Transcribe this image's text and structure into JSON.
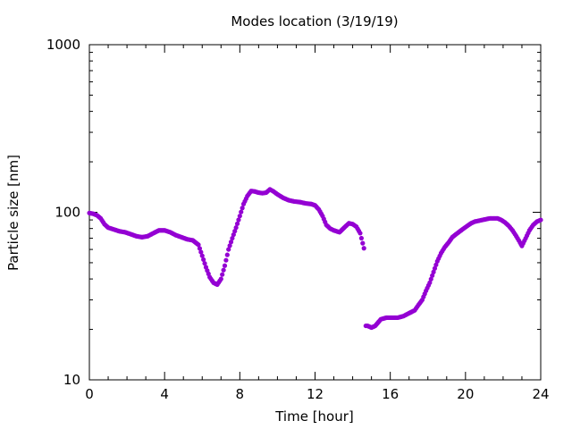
{
  "chart_data": {
    "type": "scatter",
    "title": "Modes location (3/19/19)",
    "xlabel": "Time [hour]",
    "ylabel": "Particle size [nm]",
    "xlim": [
      0,
      24
    ],
    "ylim": [
      10,
      1000
    ],
    "yscale": "log",
    "xticks": [
      "0",
      "4",
      "8",
      "12",
      "16",
      "20",
      "24"
    ],
    "yticks": [
      "10",
      "100",
      "1000"
    ],
    "grid": false,
    "legend": "none",
    "marker_color": "#9400d3",
    "series": [
      {
        "x": [
          0.0,
          0.2,
          0.4,
          0.6,
          0.8,
          1.0,
          1.3,
          1.6,
          1.9,
          2.2,
          2.5,
          2.8,
          3.1,
          3.4,
          3.7,
          4.0,
          4.3,
          4.6,
          4.9,
          5.2,
          5.5,
          5.8,
          6.0,
          6.2,
          6.4,
          6.6,
          6.8,
          7.0,
          7.2,
          7.4,
          7.6,
          7.8,
          8.0,
          8.2,
          8.4,
          8.6,
          8.8,
          9.0,
          9.2,
          9.4,
          9.6,
          9.8,
          10.0,
          10.3,
          10.6,
          10.9,
          11.2,
          11.5,
          11.8,
          12.0,
          12.2,
          12.4,
          12.6,
          12.8,
          13.0,
          13.3,
          13.6,
          13.8,
          14.0,
          14.2,
          14.4,
          14.6,
          14.7,
          14.8,
          15.0,
          15.2,
          15.5,
          15.8,
          16.1,
          16.4,
          16.7,
          17.0,
          17.3,
          17.5,
          17.7,
          17.9,
          18.1,
          18.3,
          18.5,
          18.7,
          18.9,
          19.1,
          19.3,
          19.5,
          19.7,
          19.9,
          20.1,
          20.3,
          20.5,
          20.7,
          20.9,
          21.1,
          21.3,
          21.5,
          21.7,
          21.9,
          22.1,
          22.3,
          22.5,
          22.7,
          22.9,
          23.0,
          23.2,
          23.4,
          23.6,
          23.8,
          24.0
        ],
        "y": [
          99,
          98,
          96,
          92,
          85,
          81,
          79,
          77,
          76,
          74,
          72,
          71,
          72,
          75,
          78,
          78,
          76,
          73,
          71,
          69,
          68,
          64,
          55,
          47,
          41,
          38,
          37,
          40,
          48,
          60,
          70,
          81,
          95,
          112,
          125,
          134,
          133,
          131,
          130,
          131,
          137,
          133,
          128,
          122,
          118,
          116,
          115,
          113,
          112,
          110,
          104,
          95,
          84,
          80,
          78,
          76,
          82,
          86,
          85,
          82,
          75,
          61,
          21,
          21,
          20.5,
          21,
          23,
          23.5,
          23.5,
          23.5,
          24,
          25,
          26,
          28,
          30,
          34,
          38,
          44,
          51,
          57,
          62,
          66,
          71,
          74,
          77,
          80,
          83,
          86,
          88,
          89,
          90,
          91,
          92,
          92,
          92,
          90,
          87,
          83,
          78,
          72,
          66,
          63,
          70,
          78,
          84,
          88,
          90
        ]
      }
    ]
  }
}
